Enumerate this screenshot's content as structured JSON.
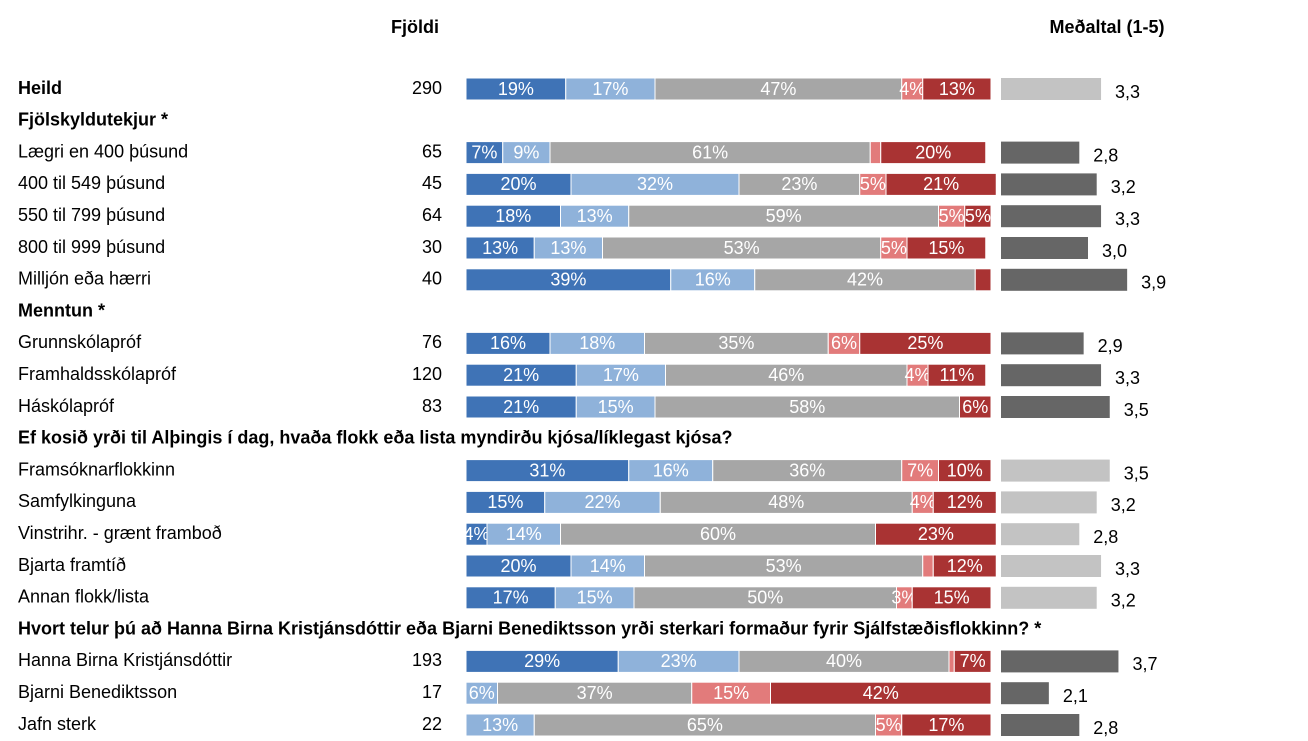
{
  "headers": {
    "count": "Fjöldi",
    "mean": "Meðaltal (1-5)"
  },
  "colors": [
    "#3f73b6",
    "#8fb2da",
    "#a6a6a6",
    "#e27b7b",
    "#a93333"
  ],
  "rows": [
    {
      "label": "Heild",
      "header": true,
      "count": 290,
      "values": [
        19,
        17,
        47,
        4,
        13
      ],
      "value_labels": [
        "19%",
        "17%",
        "47%",
        "4%",
        "13%"
      ],
      "mean": 3.3,
      "mean_label": "3,3",
      "mean_color": "#c3c3c3"
    },
    {
      "label": "Fjölskyldutekjur *",
      "header": true
    },
    {
      "label": "Lægri en 400 þúsund",
      "count": 65,
      "values": [
        7,
        9,
        61,
        2,
        20
      ],
      "value_labels": [
        "7%",
        "9%",
        "61%",
        null,
        "20%"
      ],
      "mean": 2.8,
      "mean_label": "2,8",
      "mean_color": "#666666"
    },
    {
      "label": "400 til 549 þúsund",
      "count": 45,
      "values": [
        20,
        32,
        23,
        5,
        21
      ],
      "value_labels": [
        "20%",
        "32%",
        "23%",
        "5%",
        "21%"
      ],
      "mean": 3.2,
      "mean_label": "3,2",
      "mean_color": "#666666"
    },
    {
      "label": "550 til 799 þúsund",
      "count": 64,
      "values": [
        18,
        13,
        59,
        5,
        5
      ],
      "value_labels": [
        "18%",
        "13%",
        "59%",
        "5%",
        "5%"
      ],
      "mean": 3.3,
      "mean_label": "3,3",
      "mean_color": "#666666"
    },
    {
      "label": "800 til 999 þúsund",
      "count": 30,
      "values": [
        13,
        13,
        53,
        5,
        15
      ],
      "value_labels": [
        "13%",
        "13%",
        "53%",
        "5%",
        "15%"
      ],
      "mean": 3.0,
      "mean_label": "3,0",
      "mean_color": "#666666"
    },
    {
      "label": "Milljón eða hærri",
      "count": 40,
      "values": [
        39,
        16,
        42,
        0,
        3
      ],
      "value_labels": [
        "39%",
        "16%",
        "42%",
        null,
        null
      ],
      "mean": 3.9,
      "mean_label": "3,9",
      "mean_color": "#666666"
    },
    {
      "label": "Menntun *",
      "header": true
    },
    {
      "label": "Grunnskólapróf",
      "count": 76,
      "values": [
        16,
        18,
        35,
        6,
        25
      ],
      "value_labels": [
        "16%",
        "18%",
        "35%",
        "6%",
        "25%"
      ],
      "mean": 2.9,
      "mean_label": "2,9",
      "mean_color": "#666666"
    },
    {
      "label": "Framhaldsskólapróf",
      "count": 120,
      "values": [
        21,
        17,
        46,
        4,
        11
      ],
      "value_labels": [
        "21%",
        "17%",
        "46%",
        "4%",
        "11%"
      ],
      "mean": 3.3,
      "mean_label": "3,3",
      "mean_color": "#666666"
    },
    {
      "label": "Háskólapróf",
      "count": 83,
      "values": [
        21,
        15,
        58,
        0,
        6
      ],
      "value_labels": [
        "21%",
        "15%",
        "58%",
        null,
        "6%"
      ],
      "mean": 3.5,
      "mean_label": "3,5",
      "mean_color": "#666666"
    },
    {
      "label": "Ef kosið yrði til Alþingis í dag, hvaða flokk eða lista myndirðu kjósa/líklegast kjósa?",
      "header": true
    },
    {
      "label": "Framsóknarflokkinn",
      "values": [
        31,
        16,
        36,
        7,
        10
      ],
      "value_labels": [
        "31%",
        "16%",
        "36%",
        "7%",
        "10%"
      ],
      "mean": 3.5,
      "mean_label": "3,5",
      "mean_color": "#c3c3c3"
    },
    {
      "label": "Samfylkinguna",
      "values": [
        15,
        22,
        48,
        4,
        12
      ],
      "value_labels": [
        "15%",
        "22%",
        "48%",
        "4%",
        "12%"
      ],
      "mean": 3.2,
      "mean_label": "3,2",
      "mean_color": "#c3c3c3"
    },
    {
      "label": "Vinstrihr. - grænt framboð",
      "values": [
        4,
        14,
        60,
        0,
        23
      ],
      "value_labels": [
        "4%",
        "14%",
        "60%",
        null,
        "23%"
      ],
      "mean": 2.8,
      "mean_label": "2,8",
      "mean_color": "#c3c3c3"
    },
    {
      "label": "Bjarta framtíð",
      "values": [
        20,
        14,
        53,
        2,
        12
      ],
      "value_labels": [
        "20%",
        "14%",
        "53%",
        null,
        "12%"
      ],
      "mean": 3.3,
      "mean_label": "3,3",
      "mean_color": "#c3c3c3"
    },
    {
      "label": "Annan flokk/lista",
      "values": [
        17,
        15,
        50,
        3,
        15
      ],
      "value_labels": [
        "17%",
        "15%",
        "50%",
        "3%",
        "15%"
      ],
      "mean": 3.2,
      "mean_label": "3,2",
      "mean_color": "#c3c3c3"
    },
    {
      "label": "Hvort telur þú að Hanna Birna Kristjánsdóttir eða Bjarni Benediktsson yrði sterkari formaður fyrir Sjálfstæðisflokkinn? *",
      "header": true
    },
    {
      "label": "Hanna Birna Kristjánsdóttir",
      "count": 193,
      "values": [
        29,
        23,
        40,
        1,
        7
      ],
      "value_labels": [
        "29%",
        "23%",
        "40%",
        null,
        "7%"
      ],
      "mean": 3.7,
      "mean_label": "3,7",
      "mean_color": "#666666"
    },
    {
      "label": "Bjarni Benediktsson",
      "count": 17,
      "values": [
        0,
        6,
        37,
        15,
        42
      ],
      "value_labels": [
        null,
        "6%",
        "37%",
        "15%",
        "42%"
      ],
      "mean": 2.1,
      "mean_label": "2,1",
      "mean_color": "#666666"
    },
    {
      "label": "Jafn sterk",
      "count": 22,
      "values": [
        0,
        13,
        65,
        5,
        17
      ],
      "value_labels": [
        null,
        "13%",
        "65%",
        "5%",
        "17%"
      ],
      "mean": 2.8,
      "mean_label": "2,8",
      "mean_color": "#666666"
    }
  ]
}
